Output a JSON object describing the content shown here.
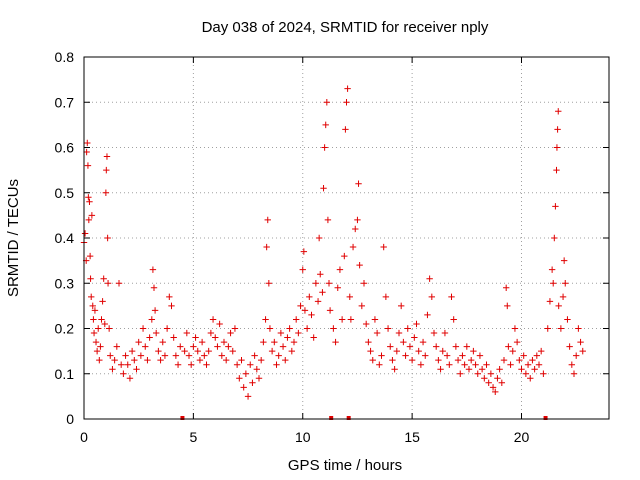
{
  "chart_data": {
    "type": "scatter",
    "title": "Day 038 of 2024, SRMTID for receiver nply",
    "xlabel": "GPS time / hours",
    "ylabel": "SRMTID / TECUs",
    "xlim": [
      0,
      24
    ],
    "ylim": [
      0,
      0.8
    ],
    "grid": true,
    "marker": "plus",
    "series_color": "#e00000",
    "x_ticks": [
      {
        "value": 0,
        "label": "0"
      },
      {
        "value": 5,
        "label": "5"
      },
      {
        "value": 10,
        "label": "10"
      },
      {
        "value": 15,
        "label": "15"
      },
      {
        "value": 20,
        "label": "20"
      }
    ],
    "y_ticks": [
      {
        "value": 0,
        "label": "0"
      },
      {
        "value": 0.1,
        "label": "0.1"
      },
      {
        "value": 0.2,
        "label": "0.2"
      },
      {
        "value": 0.3,
        "label": "0.3"
      },
      {
        "value": 0.4,
        "label": "0.4"
      },
      {
        "value": 0.5,
        "label": "0.5"
      },
      {
        "value": 0.6,
        "label": "0.6"
      },
      {
        "value": 0.7,
        "label": "0.7"
      },
      {
        "value": 0.8,
        "label": "0.8"
      }
    ],
    "data_gaps_hours": [
      4.5,
      11.3,
      12.1,
      21.1
    ],
    "series": [
      {
        "name": "SRMTID",
        "points": [
          [
            0.0,
            0.39
          ],
          [
            0.05,
            0.41
          ],
          [
            0.1,
            0.35
          ],
          [
            0.12,
            0.59
          ],
          [
            0.15,
            0.61
          ],
          [
            0.18,
            0.56
          ],
          [
            0.2,
            0.49
          ],
          [
            0.22,
            0.44
          ],
          [
            0.25,
            0.48
          ],
          [
            0.28,
            0.36
          ],
          [
            0.3,
            0.31
          ],
          [
            0.33,
            0.27
          ],
          [
            0.36,
            0.45
          ],
          [
            0.4,
            0.25
          ],
          [
            0.43,
            0.22
          ],
          [
            0.46,
            0.19
          ],
          [
            0.5,
            0.24
          ],
          [
            0.55,
            0.17
          ],
          [
            0.6,
            0.15
          ],
          [
            0.65,
            0.2
          ],
          [
            0.7,
            0.13
          ],
          [
            0.75,
            0.16
          ],
          [
            0.8,
            0.22
          ],
          [
            0.85,
            0.26
          ],
          [
            0.9,
            0.31
          ],
          [
            0.95,
            0.21
          ],
          [
            1.0,
            0.5
          ],
          [
            1.02,
            0.55
          ],
          [
            1.05,
            0.58
          ],
          [
            1.08,
            0.4
          ],
          [
            1.1,
            0.3
          ],
          [
            1.15,
            0.2
          ],
          [
            1.2,
            0.14
          ],
          [
            1.3,
            0.11
          ],
          [
            1.4,
            0.13
          ],
          [
            1.5,
            0.16
          ],
          [
            1.6,
            0.3
          ],
          [
            1.7,
            0.12
          ],
          [
            1.8,
            0.1
          ],
          [
            1.9,
            0.14
          ],
          [
            2.0,
            0.12
          ],
          [
            2.1,
            0.09
          ],
          [
            2.2,
            0.15
          ],
          [
            2.3,
            0.13
          ],
          [
            2.4,
            0.11
          ],
          [
            2.5,
            0.17
          ],
          [
            2.6,
            0.14
          ],
          [
            2.7,
            0.2
          ],
          [
            2.8,
            0.16
          ],
          [
            2.9,
            0.13
          ],
          [
            3.0,
            0.18
          ],
          [
            3.1,
            0.22
          ],
          [
            3.15,
            0.33
          ],
          [
            3.2,
            0.29
          ],
          [
            3.25,
            0.24
          ],
          [
            3.3,
            0.19
          ],
          [
            3.4,
            0.15
          ],
          [
            3.5,
            0.13
          ],
          [
            3.6,
            0.17
          ],
          [
            3.7,
            0.14
          ],
          [
            3.8,
            0.2
          ],
          [
            3.9,
            0.27
          ],
          [
            4.0,
            0.25
          ],
          [
            4.1,
            0.18
          ],
          [
            4.2,
            0.14
          ],
          [
            4.3,
            0.12
          ],
          [
            4.4,
            0.16
          ],
          [
            4.6,
            0.15
          ],
          [
            4.7,
            0.19
          ],
          [
            4.8,
            0.14
          ],
          [
            4.9,
            0.12
          ],
          [
            5.0,
            0.16
          ],
          [
            5.1,
            0.18
          ],
          [
            5.2,
            0.15
          ],
          [
            5.3,
            0.13
          ],
          [
            5.4,
            0.17
          ],
          [
            5.5,
            0.14
          ],
          [
            5.6,
            0.12
          ],
          [
            5.7,
            0.15
          ],
          [
            5.8,
            0.19
          ],
          [
            5.9,
            0.22
          ],
          [
            6.0,
            0.18
          ],
          [
            6.1,
            0.16
          ],
          [
            6.2,
            0.21
          ],
          [
            6.3,
            0.14
          ],
          [
            6.4,
            0.17
          ],
          [
            6.5,
            0.13
          ],
          [
            6.6,
            0.16
          ],
          [
            6.7,
            0.19
          ],
          [
            6.8,
            0.15
          ],
          [
            6.9,
            0.2
          ],
          [
            7.0,
            0.12
          ],
          [
            7.1,
            0.09
          ],
          [
            7.2,
            0.13
          ],
          [
            7.3,
            0.07
          ],
          [
            7.4,
            0.1
          ],
          [
            7.5,
            0.05
          ],
          [
            7.6,
            0.12
          ],
          [
            7.7,
            0.08
          ],
          [
            7.8,
            0.14
          ],
          [
            7.9,
            0.11
          ],
          [
            8.0,
            0.09
          ],
          [
            8.1,
            0.13
          ],
          [
            8.2,
            0.17
          ],
          [
            8.3,
            0.22
          ],
          [
            8.35,
            0.38
          ],
          [
            8.4,
            0.44
          ],
          [
            8.45,
            0.3
          ],
          [
            8.5,
            0.2
          ],
          [
            8.6,
            0.15
          ],
          [
            8.7,
            0.17
          ],
          [
            8.8,
            0.12
          ],
          [
            8.9,
            0.14
          ],
          [
            9.0,
            0.19
          ],
          [
            9.1,
            0.16
          ],
          [
            9.2,
            0.13
          ],
          [
            9.3,
            0.18
          ],
          [
            9.4,
            0.2
          ],
          [
            9.5,
            0.15
          ],
          [
            9.6,
            0.17
          ],
          [
            9.7,
            0.22
          ],
          [
            9.8,
            0.19
          ],
          [
            9.9,
            0.25
          ],
          [
            10.0,
            0.33
          ],
          [
            10.05,
            0.37
          ],
          [
            10.1,
            0.24
          ],
          [
            10.2,
            0.2
          ],
          [
            10.3,
            0.27
          ],
          [
            10.4,
            0.23
          ],
          [
            10.5,
            0.18
          ],
          [
            10.6,
            0.3
          ],
          [
            10.7,
            0.26
          ],
          [
            10.75,
            0.4
          ],
          [
            10.8,
            0.32
          ],
          [
            10.9,
            0.28
          ],
          [
            10.95,
            0.51
          ],
          [
            11.0,
            0.6
          ],
          [
            11.05,
            0.65
          ],
          [
            11.1,
            0.7
          ],
          [
            11.15,
            0.44
          ],
          [
            11.2,
            0.3
          ],
          [
            11.25,
            0.24
          ],
          [
            11.4,
            0.2
          ],
          [
            11.5,
            0.17
          ],
          [
            11.6,
            0.29
          ],
          [
            11.7,
            0.33
          ],
          [
            11.8,
            0.22
          ],
          [
            11.9,
            0.36
          ],
          [
            11.95,
            0.64
          ],
          [
            12.0,
            0.7
          ],
          [
            12.05,
            0.73
          ],
          [
            12.15,
            0.27
          ],
          [
            12.2,
            0.22
          ],
          [
            12.3,
            0.38
          ],
          [
            12.4,
            0.42
          ],
          [
            12.5,
            0.44
          ],
          [
            12.55,
            0.52
          ],
          [
            12.6,
            0.34
          ],
          [
            12.7,
            0.25
          ],
          [
            12.8,
            0.3
          ],
          [
            12.9,
            0.21
          ],
          [
            13.0,
            0.17
          ],
          [
            13.1,
            0.15
          ],
          [
            13.2,
            0.13
          ],
          [
            13.3,
            0.22
          ],
          [
            13.4,
            0.19
          ],
          [
            13.5,
            0.12
          ],
          [
            13.6,
            0.14
          ],
          [
            13.7,
            0.38
          ],
          [
            13.8,
            0.27
          ],
          [
            13.9,
            0.2
          ],
          [
            14.0,
            0.16
          ],
          [
            14.1,
            0.13
          ],
          [
            14.2,
            0.11
          ],
          [
            14.3,
            0.15
          ],
          [
            14.4,
            0.19
          ],
          [
            14.5,
            0.25
          ],
          [
            14.6,
            0.17
          ],
          [
            14.7,
            0.14
          ],
          [
            14.8,
            0.2
          ],
          [
            14.9,
            0.16
          ],
          [
            15.0,
            0.13
          ],
          [
            15.1,
            0.18
          ],
          [
            15.2,
            0.21
          ],
          [
            15.3,
            0.15
          ],
          [
            15.4,
            0.12
          ],
          [
            15.5,
            0.17
          ],
          [
            15.6,
            0.14
          ],
          [
            15.7,
            0.23
          ],
          [
            15.8,
            0.31
          ],
          [
            15.9,
            0.27
          ],
          [
            16.0,
            0.19
          ],
          [
            16.1,
            0.16
          ],
          [
            16.2,
            0.13
          ],
          [
            16.3,
            0.11
          ],
          [
            16.4,
            0.15
          ],
          [
            16.5,
            0.19
          ],
          [
            16.6,
            0.14
          ],
          [
            16.7,
            0.12
          ],
          [
            16.8,
            0.27
          ],
          [
            16.9,
            0.22
          ],
          [
            17.0,
            0.16
          ],
          [
            17.1,
            0.13
          ],
          [
            17.2,
            0.1
          ],
          [
            17.3,
            0.14
          ],
          [
            17.4,
            0.12
          ],
          [
            17.5,
            0.16
          ],
          [
            17.6,
            0.11
          ],
          [
            17.7,
            0.13
          ],
          [
            17.8,
            0.15
          ],
          [
            17.9,
            0.12
          ],
          [
            18.0,
            0.1
          ],
          [
            18.1,
            0.14
          ],
          [
            18.2,
            0.11
          ],
          [
            18.3,
            0.09
          ],
          [
            18.4,
            0.12
          ],
          [
            18.5,
            0.08
          ],
          [
            18.6,
            0.1
          ],
          [
            18.7,
            0.07
          ],
          [
            18.8,
            0.06
          ],
          [
            18.9,
            0.09
          ],
          [
            19.0,
            0.11
          ],
          [
            19.1,
            0.08
          ],
          [
            19.2,
            0.13
          ],
          [
            19.3,
            0.29
          ],
          [
            19.35,
            0.25
          ],
          [
            19.4,
            0.16
          ],
          [
            19.5,
            0.12
          ],
          [
            19.6,
            0.15
          ],
          [
            19.7,
            0.2
          ],
          [
            19.8,
            0.17
          ],
          [
            19.9,
            0.13
          ],
          [
            20.0,
            0.11
          ],
          [
            20.1,
            0.14
          ],
          [
            20.2,
            0.1
          ],
          [
            20.3,
            0.12
          ],
          [
            20.4,
            0.09
          ],
          [
            20.5,
            0.13
          ],
          [
            20.6,
            0.11
          ],
          [
            20.7,
            0.14
          ],
          [
            20.8,
            0.12
          ],
          [
            20.9,
            0.15
          ],
          [
            21.0,
            0.1
          ],
          [
            21.2,
            0.2
          ],
          [
            21.3,
            0.26
          ],
          [
            21.4,
            0.33
          ],
          [
            21.45,
            0.3
          ],
          [
            21.5,
            0.4
          ],
          [
            21.55,
            0.47
          ],
          [
            21.6,
            0.55
          ],
          [
            21.62,
            0.6
          ],
          [
            21.65,
            0.64
          ],
          [
            21.68,
            0.68
          ],
          [
            21.7,
            0.25
          ],
          [
            21.8,
            0.2
          ],
          [
            21.9,
            0.27
          ],
          [
            21.95,
            0.35
          ],
          [
            22.0,
            0.3
          ],
          [
            22.1,
            0.22
          ],
          [
            22.2,
            0.16
          ],
          [
            22.3,
            0.12
          ],
          [
            22.4,
            0.1
          ],
          [
            22.5,
            0.14
          ],
          [
            22.6,
            0.2
          ],
          [
            22.7,
            0.17
          ],
          [
            22.8,
            0.15
          ]
        ]
      }
    ]
  }
}
